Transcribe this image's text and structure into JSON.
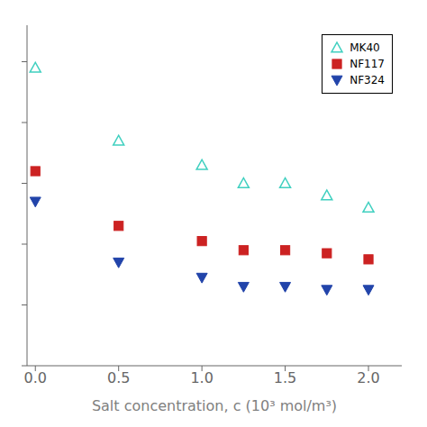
{
  "chart_data": {
    "type": "scatter",
    "xlabel": "Salt concentration, c (10³ mol/m³)",
    "xlim": [
      -0.05,
      2.2
    ],
    "ylim": [
      0,
      56
    ],
    "xticks": [
      {
        "value": 0.0,
        "label": "0.0"
      },
      0.5,
      {
        "value": 1.0,
        "label": "1.0"
      },
      1.5,
      {
        "value": 2.0,
        "label": "2.0"
      }
    ],
    "yticks": [
      0,
      10,
      20,
      30,
      40,
      50
    ],
    "tick_labels": "x",
    "grid": false,
    "legend": "upper right",
    "series": [
      {
        "name": "MK40",
        "color": "#40D0C0",
        "marker": "open-triangle-up",
        "x": [
          0.0,
          0.5,
          1.0,
          1.25,
          1.5,
          1.75,
          2.0
        ],
        "values": [
          49,
          37,
          33,
          30,
          30,
          28,
          26
        ]
      },
      {
        "name": "NF117",
        "color": "#CC2222",
        "marker": "square",
        "x": [
          0.0,
          0.5,
          1.0,
          1.25,
          1.5,
          1.75,
          2.0
        ],
        "values": [
          32,
          23,
          20.5,
          19,
          19,
          18.5,
          17.5
        ]
      },
      {
        "name": "NF324",
        "color": "#2244AA",
        "marker": "triangle-down",
        "x": [
          0.0,
          0.5,
          1.0,
          1.25,
          1.5,
          1.75,
          2.0
        ],
        "values": [
          27,
          17,
          14.5,
          13,
          13,
          12.5,
          12.5
        ]
      }
    ]
  }
}
